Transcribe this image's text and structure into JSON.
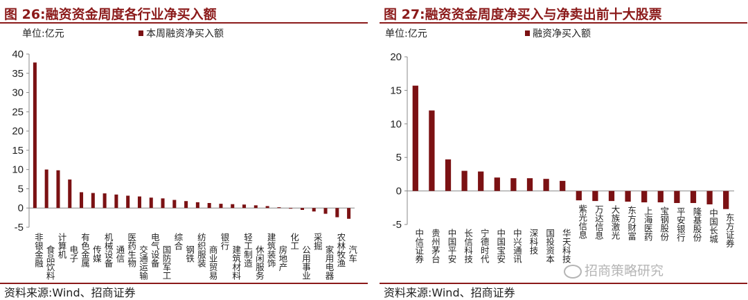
{
  "left": {
    "title": "图 26:融资资金周度各行业净买入额",
    "unit": "单位:亿元",
    "source": "资料来源:Wind、招商证券",
    "chart_data": {
      "type": "bar",
      "title": "图 26:融资资金周度各行业净买入额",
      "unit": "单位:亿元",
      "ylim": [
        -5,
        40
      ],
      "yticks": [
        -5,
        0,
        5,
        10,
        15,
        20,
        25,
        30,
        35,
        40
      ],
      "categories": [
        "非银金融",
        "食品饮料",
        "计算机",
        "电子",
        "有色金属",
        "传媒",
        "机械设备",
        "通信",
        "医药生物",
        "交通运输",
        "电气设备",
        "国防军工",
        "综合",
        "钢铁",
        "纺织服装",
        "商业贸易",
        "银行",
        "建筑材料",
        "轻工制造",
        "休闲服务",
        "建筑装饰",
        "房地产",
        "化工",
        "公用事业",
        "采掘",
        "家用电器",
        "农林牧渔",
        "汽车"
      ],
      "series": [
        {
          "name": "本周融资净买入额",
          "values": [
            37.8,
            10.0,
            9.8,
            7.4,
            4.1,
            3.9,
            3.8,
            3.5,
            3.2,
            3.0,
            2.7,
            2.5,
            2.1,
            1.8,
            1.5,
            1.3,
            1.1,
            1.0,
            0.9,
            0.7,
            0.5,
            0.2,
            -0.1,
            -0.5,
            -0.9,
            -1.5,
            -2.4,
            -2.8
          ]
        }
      ],
      "legend": "top"
    }
  },
  "right": {
    "title": "图 27:融资资金周度净买入与净卖出前十大股票",
    "unit": "单位:亿元",
    "source": "资料来源:Wind、招商证券",
    "chart_data": {
      "type": "bar",
      "title": "图 27:融资资金周度净买入与净卖出前十大股票",
      "unit": "单位:亿元",
      "ylim": [
        -5,
        20
      ],
      "yticks": [
        -5,
        0,
        5,
        10,
        15,
        20
      ],
      "categories": [
        "中信证券",
        "贵州茅台",
        "中国平安",
        "长信科技",
        "宁德时代",
        "中国宝安",
        "中兴通讯",
        "深科技",
        "国投资本",
        "华天科技",
        "紫光信息",
        "万达信息",
        "大族激光",
        "东方财富",
        "上海医药",
        "宝钢股份",
        "平安银行",
        "隆基股份",
        "中国长城",
        "东方证券"
      ],
      "tick_labels_visible": [
        "中信证券",
        "贵州茅台",
        "中国平安",
        "长信科技",
        "宁德时代",
        "中国宝安",
        "中兴通讯",
        "深科技",
        "国投资本",
        "华天科技",
        "紫光信息",
        "万达信息",
        "大族激光",
        "东方财富",
        "上海医药",
        "宝钢股份",
        "平安银行",
        "隆基股份",
        "中国长城",
        "东方证券"
      ],
      "series": [
        {
          "name": "融资净买入额",
          "values": [
            15.7,
            12.0,
            4.7,
            3.0,
            2.9,
            2.0,
            1.9,
            1.9,
            1.8,
            1.5,
            -1.4,
            -1.5,
            -1.5,
            -1.6,
            -1.7,
            -1.7,
            -1.8,
            -1.8,
            -2.0,
            -2.7
          ]
        }
      ],
      "legend": "top"
    }
  },
  "watermark": "招商策略研究",
  "colors": {
    "bar": "#7b1113",
    "accent": "#8b1a1a",
    "axis": "#888888"
  }
}
